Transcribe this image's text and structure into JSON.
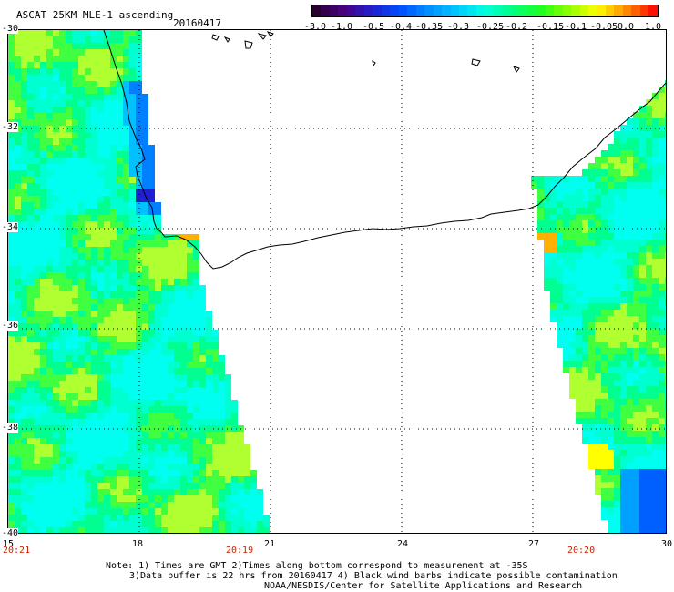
{
  "header": {
    "title": "ASCAT 25KM MLE-1 ascending",
    "date": "20160417"
  },
  "colorbar": {
    "labels": [
      "-3.0",
      "-1.0",
      "-0.5",
      "-0.4",
      "-0.35",
      "-0.3",
      "-0.25",
      "-0.2",
      "-0.15",
      "-0.1",
      "-0.05",
      "0.0",
      "1.0"
    ],
    "colors": [
      "#2a0030",
      "#4b0082",
      "#2020d0",
      "#0050ff",
      "#0090ff",
      "#00c8ff",
      "#00ffe0",
      "#00ff80",
      "#20ff20",
      "#90ff00",
      "#ffff00",
      "#ff9000",
      "#ff1000"
    ]
  },
  "axes": {
    "lon_range": [
      15,
      30
    ],
    "lat_range": [
      -40,
      -30
    ],
    "x_ticks": [
      "15",
      "18",
      "21",
      "24",
      "27",
      "30"
    ],
    "y_ticks": [
      "-30",
      "-32",
      "-34",
      "-36",
      "-38",
      "-40"
    ]
  },
  "times": [
    "20:21",
    "20:19",
    "20:20"
  ],
  "notes": {
    "line1": "Note: 1) Times are GMT 2)Times along bottom correspond to measurement at -35S",
    "line2": "3)Data buffer is 22 hrs from 20160417 4) Black wind barbs indicate possible contamination",
    "line3": "NOAA/NESDIS/Center for Satellite Applications and Research"
  }
}
